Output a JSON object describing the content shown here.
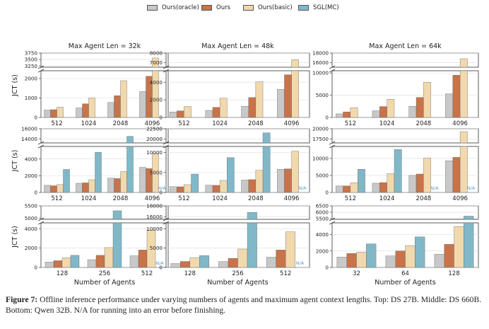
{
  "legend": [
    {
      "name": "Ours(oracle)",
      "color": "#c8c8c8"
    },
    {
      "name": "Ours",
      "color": "#c8734a"
    },
    {
      "name": "Ours(basic)",
      "color": "#f1d9ad"
    },
    {
      "name": "SGL(MC)",
      "color": "#80b8c8"
    }
  ],
  "ylabel": "JCT (s)",
  "xlabel": "Number of Agents",
  "na_label": "N/A",
  "colors": {
    "na": "#5aa0c8",
    "bar_edge": "#666666",
    "grid": "#dcdcdc"
  },
  "caption": {
    "label": "Figure 7:",
    "text": "Offline inference performance under varying numbers of agents and maximum agent context lengths. Top: DS 27B. Middle: DS 660B. Bottom: Qwen 32B. N/A for running into an error before finishing."
  },
  "chart_data": [
    {
      "type": "bar",
      "row": 0,
      "col": 0,
      "title": "Max Agent Len = 32k",
      "categories": [
        "512",
        "1024",
        "2048",
        "4096"
      ],
      "series": [
        {
          "name": "Ours(oracle)",
          "values": [
            380,
            490,
            770,
            1330
          ]
        },
        {
          "name": "Ours",
          "values": [
            400,
            700,
            1120,
            2120
          ]
        },
        {
          "name": "Ours(basic)",
          "values": [
            530,
            1000,
            1890,
            3560
          ]
        },
        {
          "name": "SGL(MC)",
          "values": [
            null,
            null,
            null,
            null
          ]
        }
      ],
      "ylim": [
        0,
        3750
      ],
      "broken_axis": {
        "lower": [
          0,
          2400
        ],
        "upper": [
          3200,
          3750
        ]
      },
      "yticks": [
        {
          "v": 0,
          "l": "0"
        },
        {
          "v": 1000,
          "l": "1000"
        },
        {
          "v": 2000,
          "l": "2000"
        },
        {
          "v": 3250,
          "l": "3250"
        },
        {
          "v": 3500,
          "l": "3500"
        },
        {
          "v": 3750,
          "l": "3750"
        }
      ]
    },
    {
      "type": "bar",
      "row": 0,
      "col": 1,
      "title": "Max Agent Len = 48k",
      "categories": [
        "512",
        "1024",
        "2048",
        "4096"
      ],
      "series": [
        {
          "name": "Ours(oracle)",
          "values": [
            620,
            800,
            1270,
            3180
          ]
        },
        {
          "name": "Ours",
          "values": [
            750,
            1150,
            2260,
            4850
          ]
        },
        {
          "name": "Ours(basic)",
          "values": [
            1240,
            2200,
            4050,
            7300
          ]
        },
        {
          "name": "SGL(MC)",
          "values": [
            null,
            null,
            null,
            null
          ]
        }
      ],
      "ylim": [
        0,
        8000
      ],
      "broken_axis": {
        "lower": [
          0,
          5300
        ],
        "upper": [
          6500,
          8000
        ]
      },
      "yticks": [
        {
          "v": 0,
          "l": "0"
        },
        {
          "v": 2000,
          "l": "2000"
        },
        {
          "v": 4000,
          "l": "4000"
        },
        {
          "v": 7000,
          "l": "7000"
        },
        {
          "v": 8000,
          "l": "8000"
        }
      ]
    },
    {
      "type": "bar",
      "row": 0,
      "col": 2,
      "title": "Max Agent Len = 64k",
      "categories": [
        "512",
        "1024",
        "2048",
        "4096"
      ],
      "series": [
        {
          "name": "Ours(oracle)",
          "values": [
            800,
            1500,
            2520,
            5300
          ]
        },
        {
          "name": "Ours",
          "values": [
            1250,
            2450,
            4500,
            9500
          ]
        },
        {
          "name": "Ours(basic)",
          "values": [
            2200,
            4100,
            7900,
            16800
          ]
        },
        {
          "name": "SGL(MC)",
          "values": [
            null,
            null,
            null,
            null
          ]
        }
      ],
      "ylim": [
        0,
        18000
      ],
      "broken_axis": {
        "lower": [
          0,
          10500
        ],
        "upper": [
          15000,
          18000
        ]
      },
      "yticks": [
        {
          "v": 0,
          "l": "0"
        },
        {
          "v": 5000,
          "l": "5000"
        },
        {
          "v": 10000,
          "l": "10000"
        },
        {
          "v": 16000,
          "l": "16000"
        },
        {
          "v": 18000,
          "l": "18000"
        }
      ]
    },
    {
      "type": "bar",
      "row": 1,
      "col": 0,
      "categories": [
        "512",
        "1024",
        "2048",
        "4096"
      ],
      "series": [
        {
          "name": "Ours(oracle)",
          "values": [
            850,
            1100,
            1720,
            3000
          ]
        },
        {
          "name": "Ours",
          "values": [
            800,
            1150,
            1660,
            2860
          ]
        },
        {
          "name": "Ours(basic)",
          "values": [
            950,
            1520,
            2500,
            4650
          ]
        },
        {
          "name": "SGL(MC)",
          "values": [
            2750,
            4800,
            14500,
            null
          ]
        }
      ],
      "ylim": [
        0,
        16000
      ],
      "broken_axis": {
        "lower": [
          0,
          5500
        ],
        "upper": [
          13200,
          16000
        ]
      },
      "na_bars": [
        {
          "category": "4096",
          "series": "SGL(MC)"
        }
      ],
      "yticks": [
        {
          "v": 0,
          "l": "0"
        },
        {
          "v": 2000,
          "l": "2000"
        },
        {
          "v": 4000,
          "l": "4000"
        },
        {
          "v": 14000,
          "l": "14000"
        },
        {
          "v": 16000,
          "l": "16000"
        }
      ]
    },
    {
      "type": "bar",
      "row": 1,
      "col": 1,
      "categories": [
        "512",
        "1024",
        "2048",
        "4096"
      ],
      "series": [
        {
          "name": "Ours(oracle)",
          "values": [
            1450,
            1800,
            3100,
            5800
          ]
        },
        {
          "name": "Ours",
          "values": [
            1420,
            1780,
            3200,
            5900
          ]
        },
        {
          "name": "Ours(basic)",
          "values": [
            1950,
            3000,
            5550,
            10300
          ]
        },
        {
          "name": "SGL(MC)",
          "values": [
            4600,
            8700,
            21500,
            null
          ]
        }
      ],
      "ylim": [
        0,
        22500
      ],
      "broken_axis": {
        "lower": [
          0,
          11500
        ],
        "upper": [
          19000,
          22500
        ]
      },
      "na_bars": [
        {
          "category": "4096",
          "series": "SGL(MC)"
        }
      ],
      "yticks": [
        {
          "v": 0,
          "l": "0"
        },
        {
          "v": 5000,
          "l": "5000"
        },
        {
          "v": 10000,
          "l": "10000"
        },
        {
          "v": 20000,
          "l": "20000"
        },
        {
          "v": 22500,
          "l": "22500"
        }
      ]
    },
    {
      "type": "bar",
      "row": 1,
      "col": 2,
      "categories": [
        "512",
        "1024",
        "2048",
        "4096"
      ],
      "series": [
        {
          "name": "Ours(oracle)",
          "values": [
            1900,
            2700,
            5000,
            9300
          ]
        },
        {
          "name": "Ours",
          "values": [
            1900,
            2900,
            5400,
            10300
          ]
        },
        {
          "name": "Ours(basic)",
          "values": [
            2850,
            5500,
            10100,
            19300
          ]
        },
        {
          "name": "SGL(MC)",
          "values": [
            6800,
            12600,
            null,
            null
          ]
        }
      ],
      "ylim": [
        0,
        20000
      ],
      "broken_axis": {
        "lower": [
          0,
          13500
        ],
        "upper": [
          16500,
          20000
        ]
      },
      "na_bars": [
        {
          "category": "2048",
          "series": "SGL(MC)"
        },
        {
          "category": "4096",
          "series": "SGL(MC)"
        }
      ],
      "yticks": [
        {
          "v": 0,
          "l": "0"
        },
        {
          "v": 5000,
          "l": "5000"
        },
        {
          "v": 10000,
          "l": "10000"
        },
        {
          "v": 17500,
          "l": "17500"
        },
        {
          "v": 20000,
          "l": "20000"
        }
      ]
    },
    {
      "type": "bar",
      "row": 2,
      "col": 0,
      "categories": [
        "128",
        "256",
        "512"
      ],
      "series": [
        {
          "name": "Ours(oracle)",
          "values": [
            550,
            800,
            1200
          ]
        },
        {
          "name": "Ours",
          "values": [
            700,
            1250,
            1800
          ]
        },
        {
          "name": "Ours(basic)",
          "values": [
            1000,
            2050,
            3850
          ]
        },
        {
          "name": "SGL(MC)",
          "values": [
            1250,
            5300,
            null
          ]
        }
      ],
      "ylim": [
        0,
        5500
      ],
      "broken_axis": {
        "lower": [
          0,
          4600
        ],
        "upper": [
          4950,
          5500
        ]
      },
      "na_bars": [
        {
          "category": "512",
          "series": "SGL(MC)"
        }
      ],
      "yticks": [
        {
          "v": 0,
          "l": "0"
        },
        {
          "v": 2000,
          "l": "2000"
        },
        {
          "v": 4000,
          "l": "4000"
        },
        {
          "v": 5000,
          "l": "5000"
        },
        {
          "v": 5500,
          "l": "5500"
        }
      ]
    },
    {
      "type": "bar",
      "row": 2,
      "col": 1,
      "categories": [
        "128",
        "256",
        "512"
      ],
      "series": [
        {
          "name": "Ours(oracle)",
          "values": [
            1000,
            1500,
            2650
          ]
        },
        {
          "name": "Ours",
          "values": [
            1550,
            2350,
            4500
          ]
        },
        {
          "name": "Ours(basic)",
          "values": [
            2550,
            4750,
            9200
          ]
        },
        {
          "name": "SGL(MC)",
          "values": [
            3050,
            16800,
            null
          ]
        }
      ],
      "ylim": [
        0,
        18000
      ],
      "broken_axis": {
        "lower": [
          0,
          11500
        ],
        "upper": [
          15500,
          18000
        ]
      },
      "na_bars": [
        {
          "category": "512",
          "series": "SGL(MC)"
        }
      ],
      "yticks": [
        {
          "v": 0,
          "l": "0"
        },
        {
          "v": 5000,
          "l": "5000"
        },
        {
          "v": 10000,
          "l": "10000"
        },
        {
          "v": 16000,
          "l": "16000"
        },
        {
          "v": 18000,
          "l": "18000"
        }
      ]
    },
    {
      "type": "bar",
      "row": 2,
      "col": 2,
      "categories": [
        "32",
        "64",
        "128"
      ],
      "series": [
        {
          "name": "Ours(oracle)",
          "values": [
            1250,
            1400,
            1600
          ]
        },
        {
          "name": "Ours",
          "values": [
            1700,
            2000,
            2800
          ]
        },
        {
          "name": "Ours(basic)",
          "values": [
            1850,
            2650,
            4950
          ]
        },
        {
          "name": "SGL(MC)",
          "values": [
            2850,
            3700,
            5700
          ]
        }
      ],
      "ylim": [
        0,
        6500
      ],
      "broken_axis": {
        "lower": [
          0,
          5400
        ],
        "upper": [
          5450,
          6500
        ]
      },
      "yticks": [
        {
          "v": 0,
          "l": "0"
        },
        {
          "v": 2000,
          "l": "2000"
        },
        {
          "v": 4000,
          "l": "4000"
        },
        {
          "v": 5500,
          "l": "5500"
        },
        {
          "v": 6000,
          "l": "6000"
        },
        {
          "v": 6500,
          "l": "6500"
        }
      ]
    }
  ]
}
